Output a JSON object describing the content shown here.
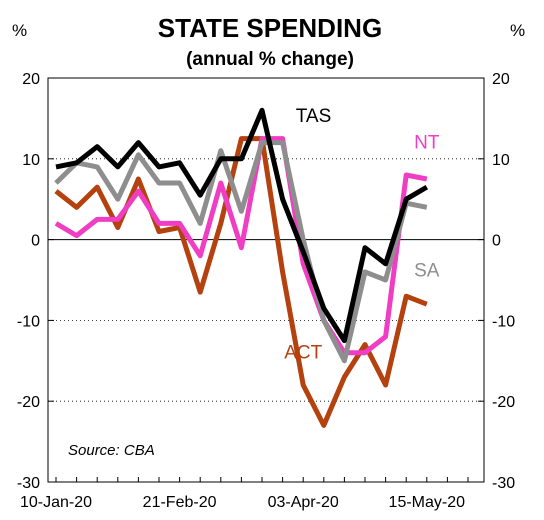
{
  "chart_data": {
    "type": "line",
    "title": "STATE SPENDING",
    "subtitle": "(annual % change)",
    "unit_left": "%",
    "unit_right": "%",
    "source": "Source: CBA",
    "ylim": [
      -30,
      20
    ],
    "yticks": [
      20,
      10,
      0,
      -10,
      -20,
      -30
    ],
    "ytick_labels": [
      "20",
      "10",
      "0",
      "-10",
      "-20",
      "-30"
    ],
    "x_tick_labels": [
      "10-Jan-20",
      "21-Feb-20",
      "03-Apr-20",
      "15-May-20"
    ],
    "x_tick_index": [
      0,
      6,
      12,
      18
    ],
    "x_count": 21,
    "grid": "horizontal",
    "legend": "inline labels",
    "series": [
      {
        "name": "ACT",
        "color": "#b5410f",
        "values": [
          6.0,
          4.0,
          6.5,
          1.5,
          7.5,
          1.0,
          1.5,
          -6.5,
          2.0,
          12.5,
          12.5,
          -4.0,
          -18.0,
          -23.0,
          -17.0,
          -13.0,
          -18.0,
          -7.0,
          -8.0
        ]
      },
      {
        "name": "NT",
        "color": "#f03ec4",
        "values": [
          2.0,
          0.5,
          2.5,
          2.5,
          6.0,
          2.0,
          2.0,
          -2.0,
          7.0,
          -1.0,
          12.5,
          12.5,
          -3.0,
          -10.0,
          -14.0,
          -14.0,
          -12.0,
          8.0,
          7.5
        ]
      },
      {
        "name": "SA",
        "color": "#8e8e8e",
        "values": [
          7.0,
          9.5,
          9.0,
          5.0,
          10.5,
          7.0,
          7.0,
          2.0,
          11.0,
          3.5,
          12.0,
          12.0,
          0.0,
          -10.0,
          -15.0,
          -4.0,
          -5.0,
          4.5,
          4.0
        ]
      },
      {
        "name": "TAS",
        "color": "#000000",
        "values": [
          9.0,
          9.5,
          11.5,
          9.0,
          12.0,
          9.0,
          9.5,
          5.5,
          10.0,
          10.0,
          16.0,
          5.0,
          -1.5,
          -8.5,
          -12.5,
          -1.0,
          -3.0,
          5.0,
          6.5
        ]
      }
    ],
    "series_label_positions": [
      {
        "name": "ACT",
        "x_index": 12.0,
        "y": -14.0
      },
      {
        "name": "NT",
        "x_index": 18.0,
        "y": 12.0
      },
      {
        "name": "SA",
        "x_index": 18.0,
        "y": -3.8
      },
      {
        "name": "TAS",
        "x_index": 12.5,
        "y": 15.3
      }
    ]
  }
}
